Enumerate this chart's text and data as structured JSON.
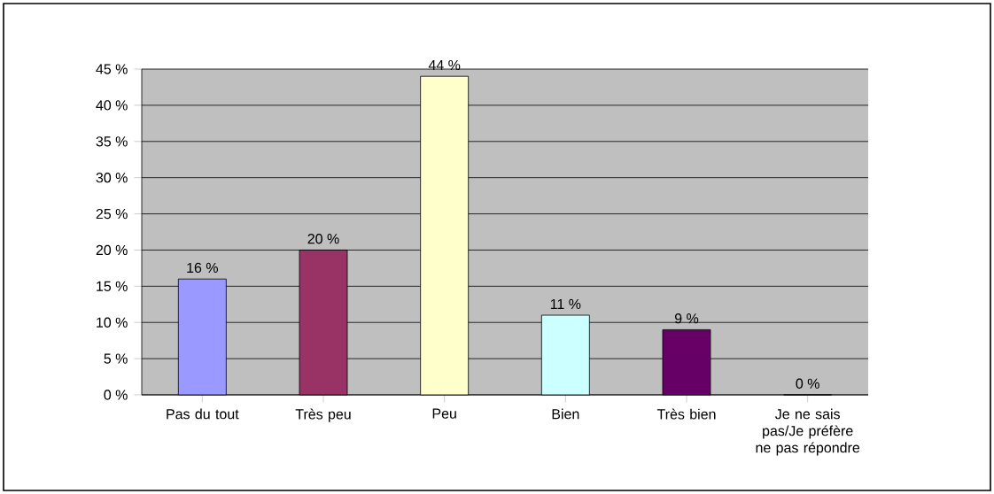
{
  "chart_data": {
    "type": "bar",
    "categories": [
      "Pas du tout",
      "Très peu",
      "Peu",
      "Bien",
      "Très bien",
      "Je ne sais pas/Je préfère ne pas répondre"
    ],
    "values": [
      16,
      20,
      44,
      11,
      9,
      0
    ],
    "colors": [
      "#9999ff",
      "#993366",
      "#ffffcc",
      "#ccffff",
      "#660066",
      "#ff8080"
    ],
    "value_labels": [
      "16 %",
      "20 %",
      "44 %",
      "11 %",
      "9 %",
      "0 %"
    ],
    "ylim": [
      0,
      45
    ],
    "yticks": [
      {
        "value": 0,
        "label": "0 %"
      },
      {
        "value": 5,
        "label": "5 %"
      },
      {
        "value": 10,
        "label": "10 %"
      },
      {
        "value": 15,
        "label": "15 %"
      },
      {
        "value": 20,
        "label": "20 %"
      },
      {
        "value": 25,
        "label": "25 %"
      },
      {
        "value": 30,
        "label": "30 %"
      },
      {
        "value": 35,
        "label": "35 %"
      },
      {
        "value": 40,
        "label": "40 %"
      },
      {
        "value": 45,
        "label": "45 %"
      }
    ],
    "grid": "y"
  }
}
